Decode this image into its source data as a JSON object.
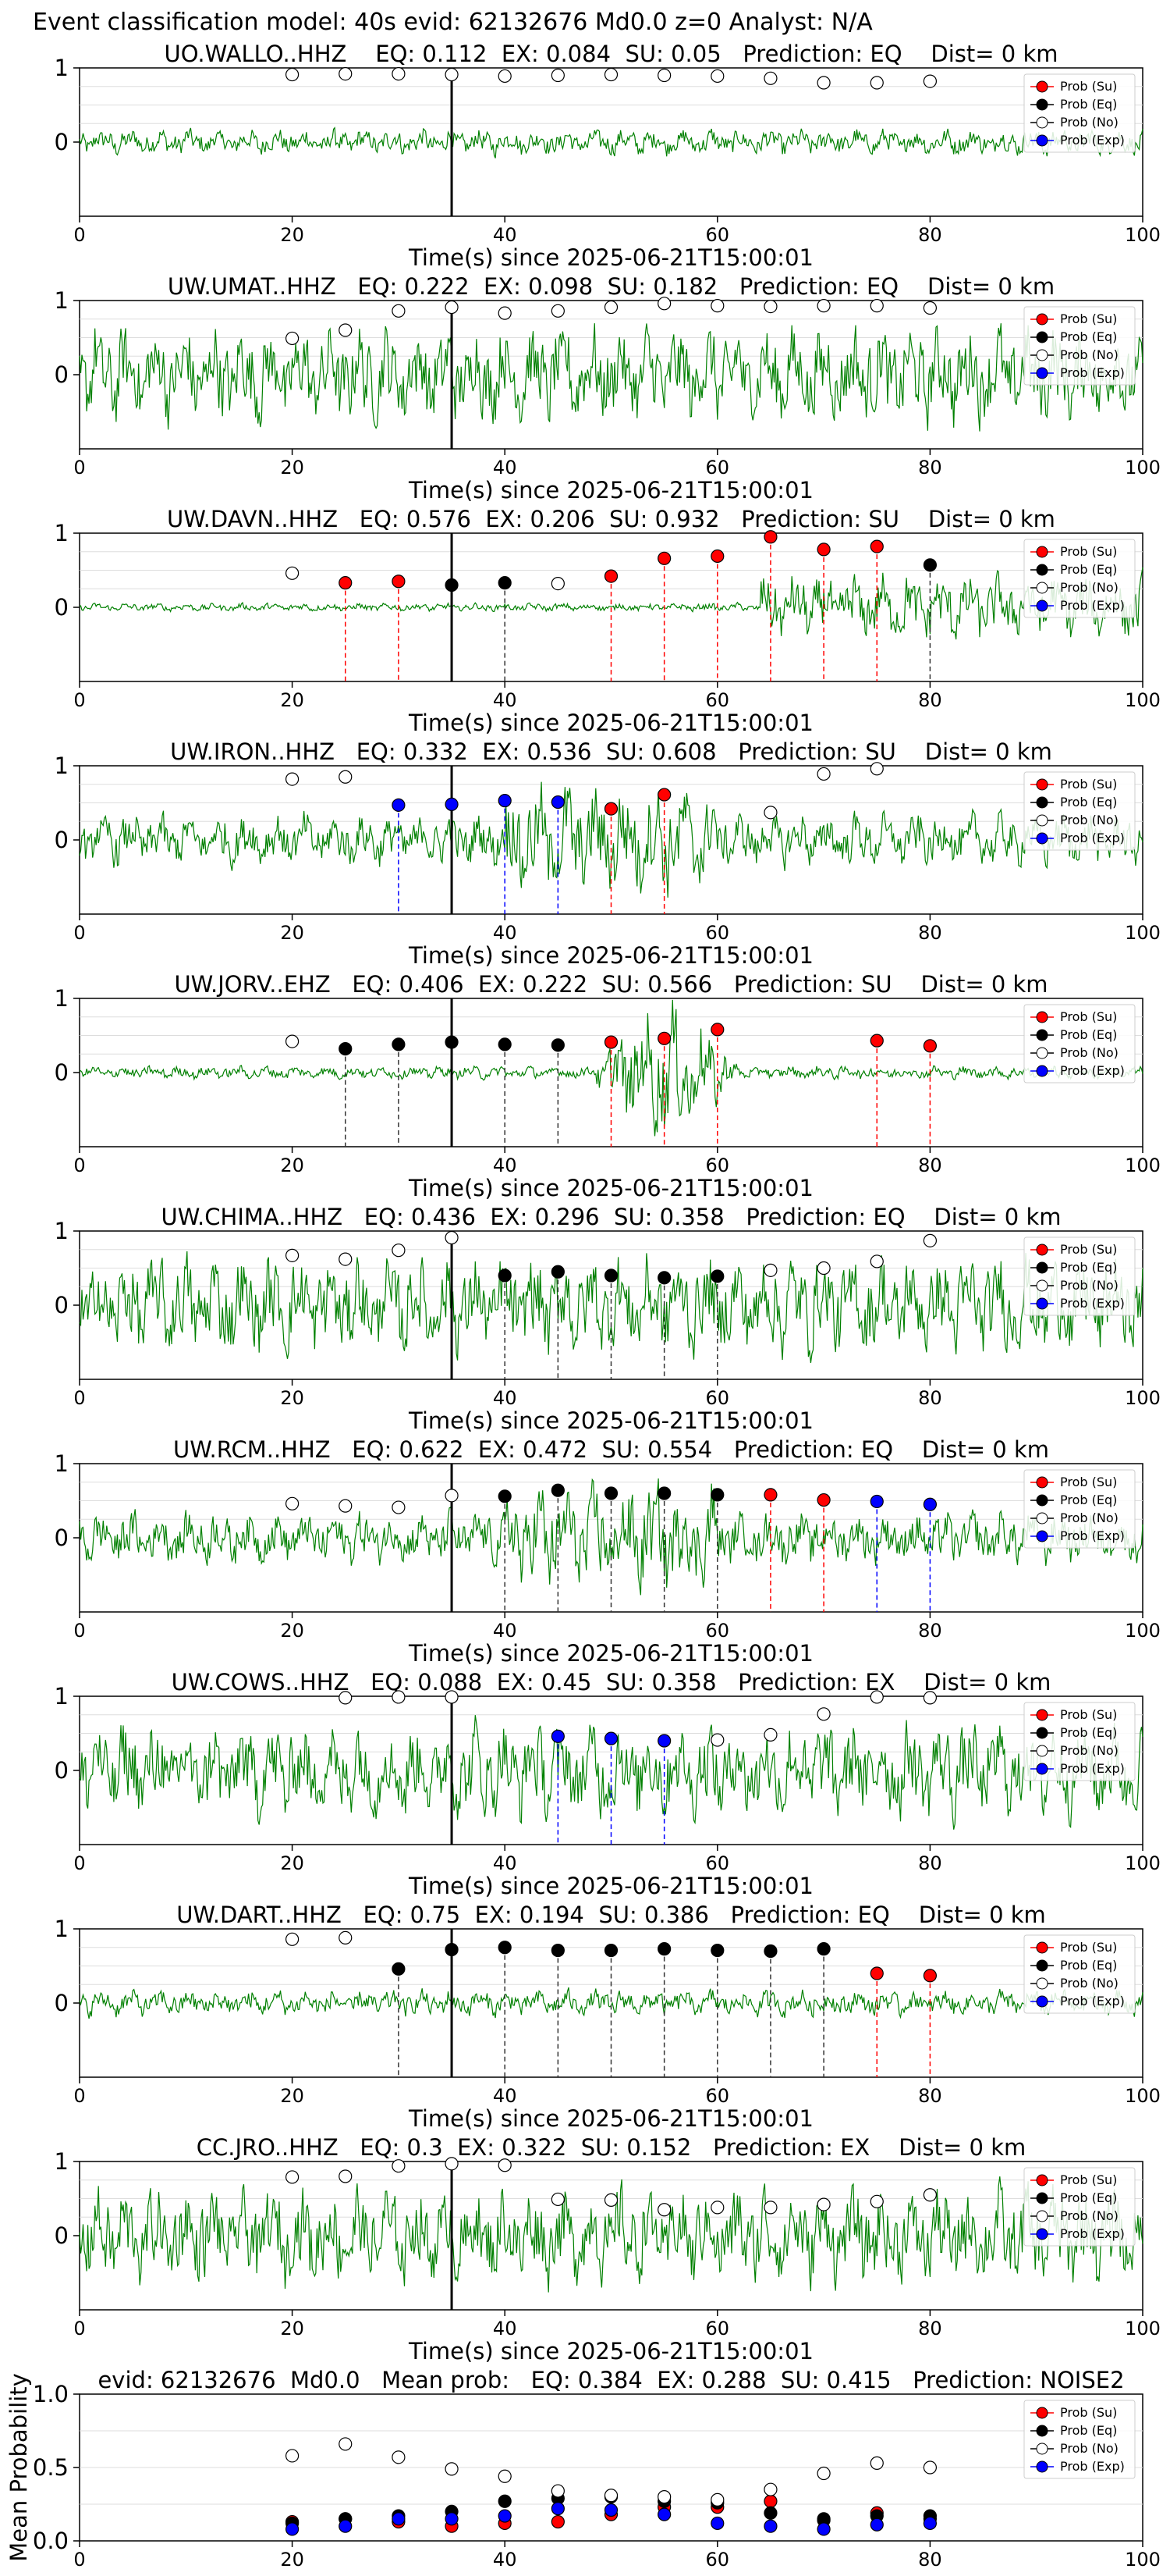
{
  "figure_title": "Event classification model: 40s evid: 62132676 Md0.0 z=0 Analyst: N/A",
  "colors": {
    "waveform": "#008000",
    "su": "#ff0000",
    "eq": "#000000",
    "exp": "#0000ff",
    "no_fill": "#ffffff",
    "marker_edge": "#000000",
    "pick": "#000000",
    "grid": "#dddddd"
  },
  "legend_labels": [
    "Prob (Su)",
    "Prob (Eq)",
    "Prob (No)",
    "Prob (Exp)"
  ],
  "chart_data": [
    {
      "type": "line",
      "title": "UO.WALLO..HHZ    EQ: 0.112  EX: 0.084  SU: 0.05   Prediction: EQ    Dist= 0 km",
      "xlabel": "Time(s) since 2025-06-21T15:00:01",
      "xlim": [
        0,
        100
      ],
      "ylim": [
        -1,
        1
      ],
      "xticks": [
        "0",
        "20",
        "40",
        "60",
        "80",
        "100"
      ],
      "yticks": [
        "1",
        "0"
      ],
      "legend": "top-right",
      "pick_time": 35,
      "noise_level": "low",
      "points": [
        {
          "t": 20,
          "p": 0.91,
          "c": "no"
        },
        {
          "t": 25,
          "p": 0.92,
          "c": "no"
        },
        {
          "t": 30,
          "p": 0.92,
          "c": "no"
        },
        {
          "t": 35,
          "p": 0.91,
          "c": "no"
        },
        {
          "t": 40,
          "p": 0.89,
          "c": "no"
        },
        {
          "t": 45,
          "p": 0.9,
          "c": "no"
        },
        {
          "t": 50,
          "p": 0.91,
          "c": "no"
        },
        {
          "t": 55,
          "p": 0.9,
          "c": "no"
        },
        {
          "t": 60,
          "p": 0.89,
          "c": "no"
        },
        {
          "t": 65,
          "p": 0.86,
          "c": "no"
        },
        {
          "t": 70,
          "p": 0.8,
          "c": "no"
        },
        {
          "t": 75,
          "p": 0.8,
          "c": "no"
        },
        {
          "t": 80,
          "p": 0.82,
          "c": "no"
        }
      ]
    },
    {
      "type": "line",
      "title": "UW.UMAT..HHZ   EQ: 0.222  EX: 0.098  SU: 0.182   Prediction: EQ    Dist= 0 km",
      "xlabel": "Time(s) since 2025-06-21T15:00:01",
      "xlim": [
        0,
        100
      ],
      "ylim": [
        -1,
        1
      ],
      "xticks": [
        "0",
        "20",
        "40",
        "60",
        "80",
        "100"
      ],
      "yticks": [
        "1",
        "0"
      ],
      "legend": "top-right",
      "pick_time": 35,
      "noise_level": "high",
      "points": [
        {
          "t": 20,
          "p": 0.49,
          "c": "no"
        },
        {
          "t": 25,
          "p": 0.6,
          "c": "no"
        },
        {
          "t": 30,
          "p": 0.86,
          "c": "no"
        },
        {
          "t": 35,
          "p": 0.91,
          "c": "no"
        },
        {
          "t": 40,
          "p": 0.83,
          "c": "no"
        },
        {
          "t": 45,
          "p": 0.86,
          "c": "no"
        },
        {
          "t": 50,
          "p": 0.91,
          "c": "no"
        },
        {
          "t": 55,
          "p": 0.96,
          "c": "no"
        },
        {
          "t": 60,
          "p": 0.93,
          "c": "no"
        },
        {
          "t": 65,
          "p": 0.92,
          "c": "no"
        },
        {
          "t": 70,
          "p": 0.93,
          "c": "no"
        },
        {
          "t": 75,
          "p": 0.93,
          "c": "no"
        },
        {
          "t": 80,
          "p": 0.9,
          "c": "no"
        }
      ]
    },
    {
      "type": "line",
      "title": "UW.DAVN..HHZ   EQ: 0.576  EX: 0.206  SU: 0.932   Prediction: SU    Dist= 0 km",
      "xlabel": "Time(s) since 2025-06-21T15:00:01",
      "xlim": [
        0,
        100
      ],
      "ylim": [
        -1,
        1
      ],
      "xticks": [
        "0",
        "20",
        "40",
        "60",
        "80",
        "100"
      ],
      "yticks": [
        "1",
        "0"
      ],
      "legend": "top-right",
      "pick_time": 35,
      "noise_level": "late",
      "points": [
        {
          "t": 20,
          "p": 0.46,
          "c": "no"
        },
        {
          "t": 25,
          "p": 0.33,
          "c": "su"
        },
        {
          "t": 30,
          "p": 0.35,
          "c": "su"
        },
        {
          "t": 35,
          "p": 0.3,
          "c": "eq"
        },
        {
          "t": 40,
          "p": 0.33,
          "c": "eq"
        },
        {
          "t": 45,
          "p": 0.32,
          "c": "no"
        },
        {
          "t": 50,
          "p": 0.42,
          "c": "su"
        },
        {
          "t": 55,
          "p": 0.66,
          "c": "su"
        },
        {
          "t": 60,
          "p": 0.69,
          "c": "su"
        },
        {
          "t": 65,
          "p": 0.95,
          "c": "su"
        },
        {
          "t": 70,
          "p": 0.78,
          "c": "su"
        },
        {
          "t": 75,
          "p": 0.82,
          "c": "su"
        },
        {
          "t": 80,
          "p": 0.57,
          "c": "eq"
        }
      ]
    },
    {
      "type": "line",
      "title": "UW.IRON..HHZ   EQ: 0.332  EX: 0.536  SU: 0.608   Prediction: SU    Dist= 0 km",
      "xlabel": "Time(s) since 2025-06-21T15:00:01",
      "xlim": [
        0,
        100
      ],
      "ylim": [
        -1,
        1
      ],
      "xticks": [
        "0",
        "20",
        "40",
        "60",
        "80",
        "100"
      ],
      "yticks": [
        "1",
        "0"
      ],
      "legend": "top-right",
      "pick_time": 35,
      "noise_level": "mid",
      "points": [
        {
          "t": 20,
          "p": 0.82,
          "c": "no"
        },
        {
          "t": 25,
          "p": 0.85,
          "c": "no"
        },
        {
          "t": 30,
          "p": 0.47,
          "c": "exp"
        },
        {
          "t": 35,
          "p": 0.48,
          "c": "exp"
        },
        {
          "t": 40,
          "p": 0.53,
          "c": "exp"
        },
        {
          "t": 45,
          "p": 0.51,
          "c": "exp"
        },
        {
          "t": 50,
          "p": 0.42,
          "c": "su"
        },
        {
          "t": 55,
          "p": 0.61,
          "c": "su"
        },
        {
          "t": 65,
          "p": 0.37,
          "c": "no"
        },
        {
          "t": 70,
          "p": 0.89,
          "c": "no"
        },
        {
          "t": 75,
          "p": 0.96,
          "c": "no"
        }
      ]
    },
    {
      "type": "line",
      "title": "UW.JORV..EHZ   EQ: 0.406  EX: 0.222  SU: 0.566   Prediction: SU    Dist= 0 km",
      "xlabel": "Time(s) since 2025-06-21T15:00:01",
      "xlim": [
        0,
        100
      ],
      "ylim": [
        -1,
        1
      ],
      "xticks": [
        "0",
        "20",
        "40",
        "60",
        "80",
        "100"
      ],
      "yticks": [
        "1",
        "0"
      ],
      "legend": "top-right",
      "pick_time": 35,
      "noise_level": "burst",
      "points": [
        {
          "t": 20,
          "p": 0.42,
          "c": "no"
        },
        {
          "t": 25,
          "p": 0.32,
          "c": "eq"
        },
        {
          "t": 30,
          "p": 0.38,
          "c": "eq"
        },
        {
          "t": 35,
          "p": 0.41,
          "c": "eq"
        },
        {
          "t": 40,
          "p": 0.38,
          "c": "eq"
        },
        {
          "t": 45,
          "p": 0.37,
          "c": "eq"
        },
        {
          "t": 50,
          "p": 0.41,
          "c": "su"
        },
        {
          "t": 55,
          "p": 0.46,
          "c": "su"
        },
        {
          "t": 60,
          "p": 0.58,
          "c": "su"
        },
        {
          "t": 75,
          "p": 0.43,
          "c": "su"
        },
        {
          "t": 80,
          "p": 0.36,
          "c": "su"
        }
      ]
    },
    {
      "type": "line",
      "title": "UW.CHIMA..HHZ   EQ: 0.436  EX: 0.296  SU: 0.358   Prediction: EQ    Dist= 0 km",
      "xlabel": "Time(s) since 2025-06-21T15:00:01",
      "xlim": [
        0,
        100
      ],
      "ylim": [
        -1,
        1
      ],
      "xticks": [
        "0",
        "20",
        "40",
        "60",
        "80",
        "100"
      ],
      "yticks": [
        "1",
        "0"
      ],
      "legend": "top-right",
      "pick_time": 35,
      "noise_level": "high",
      "points": [
        {
          "t": 20,
          "p": 0.67,
          "c": "no"
        },
        {
          "t": 25,
          "p": 0.62,
          "c": "no"
        },
        {
          "t": 30,
          "p": 0.74,
          "c": "no"
        },
        {
          "t": 35,
          "p": 0.91,
          "c": "no"
        },
        {
          "t": 40,
          "p": 0.4,
          "c": "eq"
        },
        {
          "t": 45,
          "p": 0.45,
          "c": "eq"
        },
        {
          "t": 50,
          "p": 0.4,
          "c": "eq"
        },
        {
          "t": 55,
          "p": 0.37,
          "c": "eq"
        },
        {
          "t": 60,
          "p": 0.39,
          "c": "eq"
        },
        {
          "t": 65,
          "p": 0.47,
          "c": "no"
        },
        {
          "t": 70,
          "p": 0.5,
          "c": "no"
        },
        {
          "t": 75,
          "p": 0.59,
          "c": "no"
        },
        {
          "t": 80,
          "p": 0.87,
          "c": "no"
        }
      ]
    },
    {
      "type": "line",
      "title": "UW.RCM..HHZ   EQ: 0.622  EX: 0.472  SU: 0.554   Prediction: EQ    Dist= 0 km",
      "xlabel": "Time(s) since 2025-06-21T15:00:01",
      "xlim": [
        0,
        100
      ],
      "ylim": [
        -1,
        1
      ],
      "xticks": [
        "0",
        "20",
        "40",
        "60",
        "80",
        "100"
      ],
      "yticks": [
        "1",
        "0"
      ],
      "legend": "top-right",
      "pick_time": 35,
      "noise_level": "mid",
      "points": [
        {
          "t": 20,
          "p": 0.46,
          "c": "no"
        },
        {
          "t": 25,
          "p": 0.43,
          "c": "no"
        },
        {
          "t": 30,
          "p": 0.41,
          "c": "no"
        },
        {
          "t": 35,
          "p": 0.57,
          "c": "no"
        },
        {
          "t": 40,
          "p": 0.56,
          "c": "eq"
        },
        {
          "t": 45,
          "p": 0.64,
          "c": "eq"
        },
        {
          "t": 50,
          "p": 0.6,
          "c": "eq"
        },
        {
          "t": 55,
          "p": 0.6,
          "c": "eq"
        },
        {
          "t": 60,
          "p": 0.58,
          "c": "eq"
        },
        {
          "t": 65,
          "p": 0.58,
          "c": "su"
        },
        {
          "t": 70,
          "p": 0.51,
          "c": "su"
        },
        {
          "t": 75,
          "p": 0.49,
          "c": "exp"
        },
        {
          "t": 80,
          "p": 0.45,
          "c": "exp"
        }
      ]
    },
    {
      "type": "line",
      "title": "UW.COWS..HHZ   EQ: 0.088  EX: 0.45  SU: 0.358   Prediction: EX    Dist= 0 km",
      "xlabel": "Time(s) since 2025-06-21T15:00:01",
      "xlim": [
        0,
        100
      ],
      "ylim": [
        -1,
        1
      ],
      "xticks": [
        "0",
        "20",
        "40",
        "60",
        "80",
        "100"
      ],
      "yticks": [
        "1",
        "0"
      ],
      "legend": "top-right",
      "pick_time": 35,
      "noise_level": "high",
      "points": [
        {
          "t": 25,
          "p": 0.98,
          "c": "no"
        },
        {
          "t": 30,
          "p": 0.99,
          "c": "no"
        },
        {
          "t": 35,
          "p": 0.99,
          "c": "no"
        },
        {
          "t": 45,
          "p": 0.46,
          "c": "exp"
        },
        {
          "t": 50,
          "p": 0.43,
          "c": "exp"
        },
        {
          "t": 55,
          "p": 0.4,
          "c": "exp"
        },
        {
          "t": 60,
          "p": 0.41,
          "c": "no"
        },
        {
          "t": 65,
          "p": 0.48,
          "c": "no"
        },
        {
          "t": 70,
          "p": 0.76,
          "c": "no"
        },
        {
          "t": 75,
          "p": 0.99,
          "c": "no"
        },
        {
          "t": 80,
          "p": 0.98,
          "c": "no"
        }
      ]
    },
    {
      "type": "line",
      "title": "UW.DART..HHZ   EQ: 0.75  EX: 0.194  SU: 0.386   Prediction: EQ    Dist= 0 km",
      "xlabel": "Time(s) since 2025-06-21T15:00:01",
      "xlim": [
        0,
        100
      ],
      "ylim": [
        -1,
        1
      ],
      "xticks": [
        "0",
        "20",
        "40",
        "60",
        "80",
        "100"
      ],
      "yticks": [
        "1",
        "0"
      ],
      "legend": "top-right",
      "pick_time": 35,
      "noise_level": "low",
      "points": [
        {
          "t": 20,
          "p": 0.86,
          "c": "no"
        },
        {
          "t": 25,
          "p": 0.88,
          "c": "no"
        },
        {
          "t": 30,
          "p": 0.46,
          "c": "eq"
        },
        {
          "t": 35,
          "p": 0.72,
          "c": "eq"
        },
        {
          "t": 40,
          "p": 0.75,
          "c": "eq"
        },
        {
          "t": 45,
          "p": 0.71,
          "c": "eq"
        },
        {
          "t": 50,
          "p": 0.71,
          "c": "eq"
        },
        {
          "t": 55,
          "p": 0.73,
          "c": "eq"
        },
        {
          "t": 60,
          "p": 0.71,
          "c": "eq"
        },
        {
          "t": 65,
          "p": 0.7,
          "c": "eq"
        },
        {
          "t": 70,
          "p": 0.73,
          "c": "eq"
        },
        {
          "t": 75,
          "p": 0.4,
          "c": "su"
        },
        {
          "t": 80,
          "p": 0.37,
          "c": "su"
        }
      ]
    },
    {
      "type": "line",
      "title": "CC.JRO..HHZ   EQ: 0.3  EX: 0.322  SU: 0.152   Prediction: EX    Dist= 0 km",
      "xlabel": "Time(s) since 2025-06-21T15:00:01",
      "xlim": [
        0,
        100
      ],
      "ylim": [
        -1,
        1
      ],
      "xticks": [
        "0",
        "20",
        "40",
        "60",
        "80",
        "100"
      ],
      "yticks": [
        "1",
        "0"
      ],
      "legend": "top-right",
      "pick_time": 35,
      "noise_level": "high",
      "points": [
        {
          "t": 20,
          "p": 0.79,
          "c": "no"
        },
        {
          "t": 25,
          "p": 0.8,
          "c": "no"
        },
        {
          "t": 30,
          "p": 0.94,
          "c": "no"
        },
        {
          "t": 35,
          "p": 0.97,
          "c": "no"
        },
        {
          "t": 40,
          "p": 0.95,
          "c": "no"
        },
        {
          "t": 45,
          "p": 0.49,
          "c": "no"
        },
        {
          "t": 50,
          "p": 0.48,
          "c": "no"
        },
        {
          "t": 55,
          "p": 0.35,
          "c": "no"
        },
        {
          "t": 60,
          "p": 0.38,
          "c": "no"
        },
        {
          "t": 65,
          "p": 0.38,
          "c": "no"
        },
        {
          "t": 70,
          "p": 0.42,
          "c": "no"
        },
        {
          "t": 75,
          "p": 0.46,
          "c": "no"
        },
        {
          "t": 80,
          "p": 0.55,
          "c": "no"
        }
      ]
    },
    {
      "type": "line",
      "title": "evid: 62132676  Md0.0   Mean prob:   EQ: 0.384  EX: 0.288  SU: 0.415   Prediction: NOISE2",
      "xlabel": "",
      "ylabel": "Mean Probability",
      "xlim": [
        0,
        100
      ],
      "ylim": [
        0,
        1
      ],
      "xticks": [
        "0",
        "20",
        "40",
        "60",
        "80",
        "100"
      ],
      "yticks": [
        "1.0",
        "0.5",
        "0.0"
      ],
      "legend": "top-right",
      "x": [
        20,
        25,
        30,
        35,
        40,
        45,
        50,
        55,
        60,
        65,
        70,
        75,
        80
      ],
      "series": [
        {
          "name": "Prob (Su)",
          "c": "su",
          "values": [
            0.13,
            0.15,
            0.13,
            0.1,
            0.12,
            0.13,
            0.18,
            0.23,
            0.23,
            0.27,
            0.14,
            0.19,
            0.15
          ]
        },
        {
          "name": "Prob (Eq)",
          "c": "eq",
          "values": [
            0.12,
            0.15,
            0.17,
            0.2,
            0.27,
            0.29,
            0.3,
            0.27,
            0.26,
            0.19,
            0.15,
            0.17,
            0.17
          ]
        },
        {
          "name": "Prob (No)",
          "c": "no",
          "values": [
            0.58,
            0.66,
            0.57,
            0.49,
            0.44,
            0.34,
            0.31,
            0.3,
            0.28,
            0.35,
            0.46,
            0.53,
            0.5
          ]
        },
        {
          "name": "Prob (Exp)",
          "c": "exp",
          "values": [
            0.08,
            0.1,
            0.15,
            0.15,
            0.17,
            0.22,
            0.21,
            0.18,
            0.12,
            0.1,
            0.08,
            0.11,
            0.12
          ]
        }
      ]
    }
  ]
}
